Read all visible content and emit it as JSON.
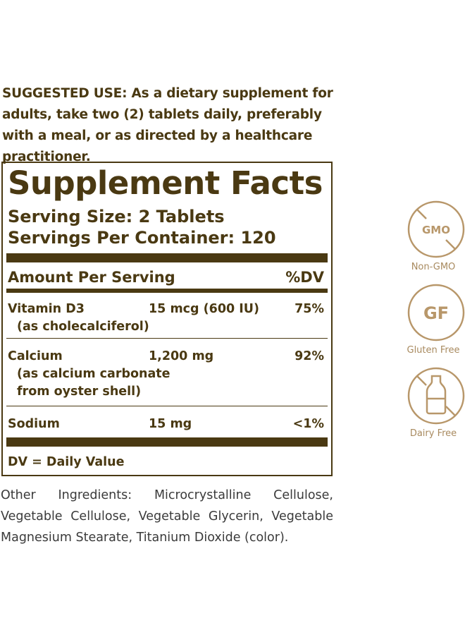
{
  "suggested_use": "SUGGESTED USE: As a dietary supplement for adults, take two (2) tablets daily, preferably with a meal, or as directed by a healthcare practitioner.",
  "facts": {
    "title": "Supplement Facts",
    "serving_size": "Serving Size: 2 Tablets",
    "servings_per_container": "Servings Per Container: 120",
    "amount_header": "Amount Per Serving",
    "dv_header": "%DV",
    "rows": [
      {
        "name": "Vitamin D3",
        "amount": "15 mcg (600 IU)",
        "dv": "75%",
        "sub": [
          "(as cholecalciferol)"
        ]
      },
      {
        "name": "Calcium",
        "amount": "1,200 mg",
        "dv": "92%",
        "sub": [
          "(as calcium carbonate",
          "from oyster shell)"
        ]
      },
      {
        "name": "Sodium",
        "amount": "15 mg",
        "dv": "<1%",
        "sub": []
      }
    ],
    "footnote": "DV = Daily Value"
  },
  "other_ingredients": "Other Ingredients: Microcrystalline Cellulose, Vegetable Cellulose, Vegetable Glycerin, Vegetable Magnesium Stearate, Titanium Dioxide (color).",
  "badges": [
    {
      "icon": "no-gmo-icon",
      "glyph": "GMO",
      "label": "Non-GMO"
    },
    {
      "icon": "gluten-free-icon",
      "glyph": "GF",
      "label": "Gluten Free"
    },
    {
      "icon": "dairy-free-icon",
      "label": "Dairy Free"
    }
  ],
  "colors": {
    "text": "#4a3912",
    "badge": "#b8976a"
  }
}
